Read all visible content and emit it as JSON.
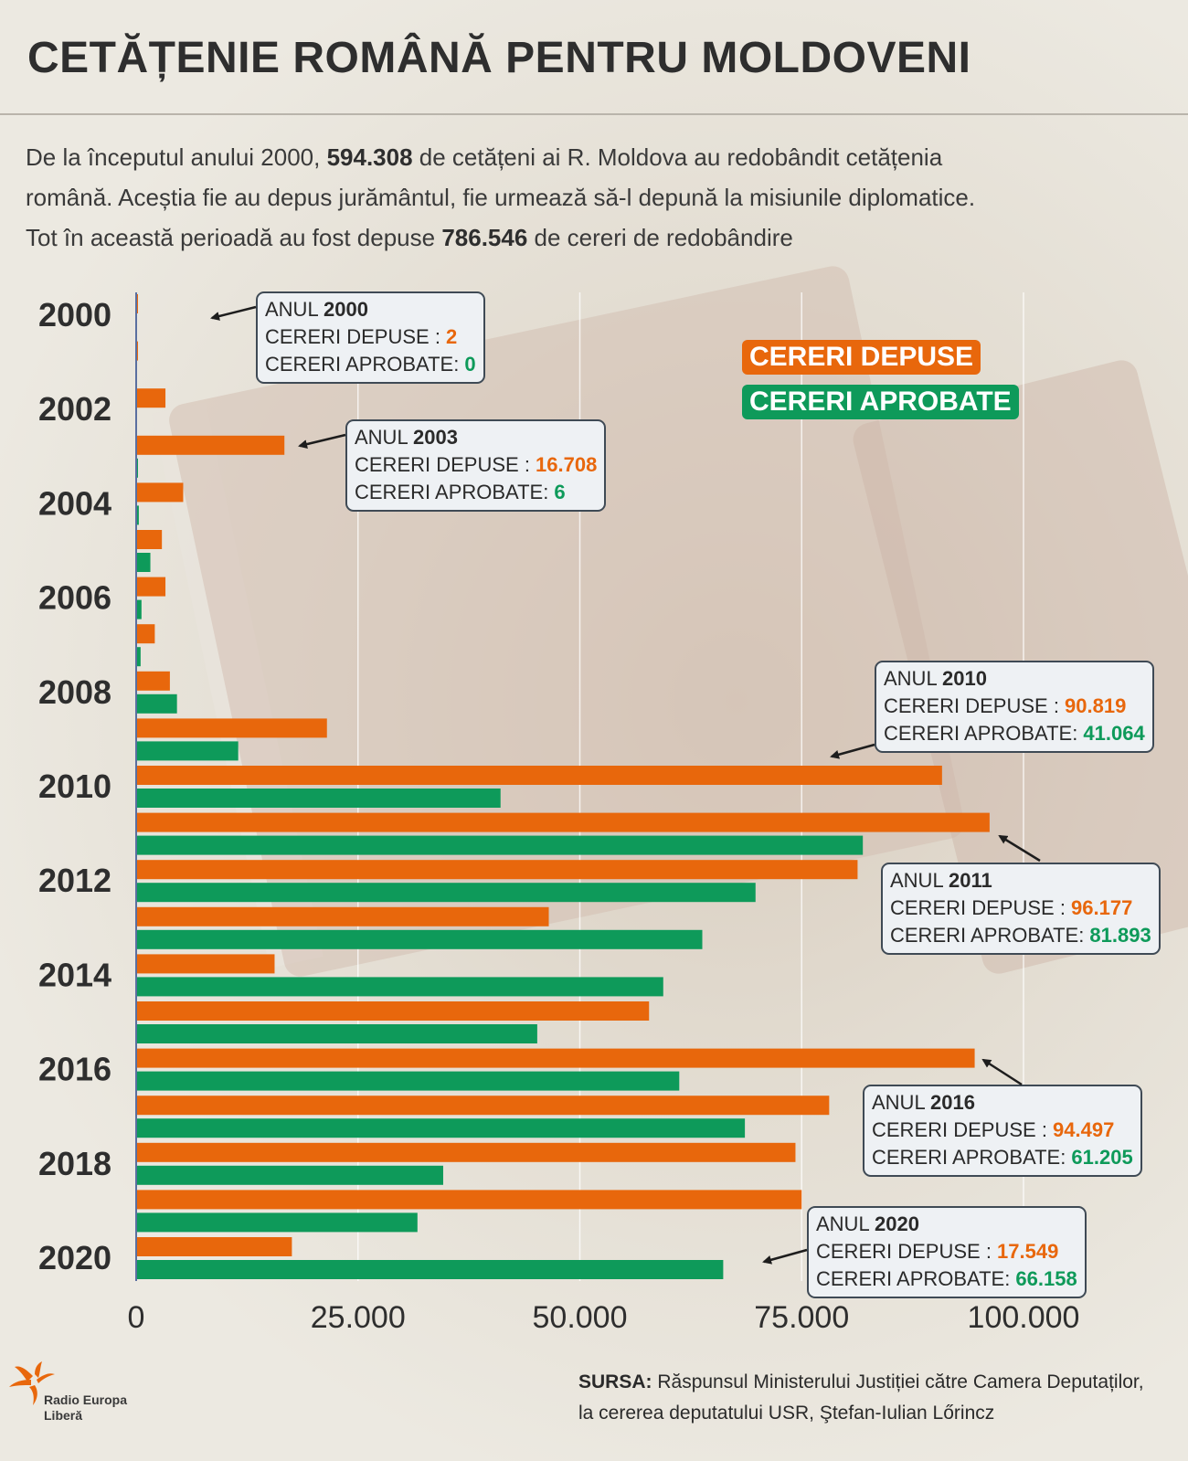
{
  "title": "CETĂȚENIE ROMÂNĂ PENTRU MOLDOVENI",
  "intro": {
    "line1_a": "De la începutul anului 2000, ",
    "line1_num": "594.308",
    "line1_b": " de cetățeni ai R. Moldova au redobândit cetățenia",
    "line2": "română. Aceștia fie au depus jurământul, fie urmează să-l depună la misiunile diplomatice.",
    "line3_a": "Tot în această perioadă au fost depuse ",
    "line3_num": "786.546",
    "line3_b": " de cereri de redobândire"
  },
  "legend": {
    "depuse": "CERERI DEPUSE",
    "aprobate": "CERERI APROBATE"
  },
  "colors": {
    "depuse": "#e8670c",
    "aprobate": "#0e9a5a",
    "axis": "#5a6fa0"
  },
  "callouts": [
    {
      "anul_label": "ANUL ",
      "year": "2000",
      "depuse_label": "CERERI DEPUSE : ",
      "depuse": "2",
      "aprobate_label": "CERERI APROBATE: ",
      "aprobate": "0"
    },
    {
      "anul_label": "ANUL ",
      "year": "2003",
      "depuse_label": "CERERI DEPUSE : ",
      "depuse": "16.708",
      "aprobate_label": "CERERI APROBATE: ",
      "aprobate": "6"
    },
    {
      "anul_label": "ANUL ",
      "year": "2010",
      "depuse_label": "CERERI DEPUSE : ",
      "depuse": "90.819",
      "aprobate_label": "CERERI APROBATE: ",
      "aprobate": "41.064"
    },
    {
      "anul_label": "ANUL ",
      "year": "2011",
      "depuse_label": "CERERI DEPUSE : ",
      "depuse": "96.177",
      "aprobate_label": "CERERI APROBATE: ",
      "aprobate": "81.893"
    },
    {
      "anul_label": "ANUL ",
      "year": "2016",
      "depuse_label": "CERERI DEPUSE : ",
      "depuse": "94.497",
      "aprobate_label": "CERERI APROBATE: ",
      "aprobate": "61.205"
    },
    {
      "anul_label": "ANUL ",
      "year": "2020",
      "depuse_label": "CERERI DEPUSE : ",
      "depuse": "17.549",
      "aprobate_label": "CERERI APROBATE: ",
      "aprobate": "66.158"
    }
  ],
  "source": {
    "label": "SURSA:",
    "line1": " Răspunsul Ministerului Justiției către Camera Deputaților,",
    "line2": "la cererea deputatului USR, Ştefan-Iulian Lőrincz"
  },
  "logo": {
    "line1": "Radio Europa",
    "line2": "Liberă"
  },
  "chart_data": {
    "type": "bar",
    "orientation": "horizontal",
    "categories": [
      "2000",
      "2001",
      "2002",
      "2003",
      "2004",
      "2005",
      "2006",
      "2007",
      "2008",
      "2009",
      "2010",
      "2011",
      "2012",
      "2013",
      "2014",
      "2015",
      "2016",
      "2017",
      "2018",
      "2019",
      "2020"
    ],
    "category_tick_labels": [
      "2000",
      "2002",
      "2004",
      "2006",
      "2008",
      "2010",
      "2012",
      "2014",
      "2016",
      "2018",
      "2020"
    ],
    "series": [
      {
        "name": "CERERI DEPUSE",
        "values": [
          2,
          200,
          3300,
          16708,
          5300,
          2900,
          3300,
          2100,
          3800,
          21500,
          90819,
          96177,
          81300,
          46500,
          15600,
          57800,
          94497,
          78100,
          74300,
          75000,
          17549
        ]
      },
      {
        "name": "CERERI APROBATE",
        "values": [
          0,
          0,
          0,
          6,
          300,
          1600,
          600,
          500,
          4600,
          11500,
          41064,
          81893,
          69800,
          63800,
          59400,
          45200,
          61205,
          68600,
          34600,
          31700,
          66158
        ]
      }
    ],
    "xlim": [
      0,
      105000
    ],
    "x_ticks": [
      0,
      25000,
      50000,
      75000,
      100000
    ],
    "x_tick_labels": [
      "0",
      "25.000",
      "50.000",
      "75.000",
      "100.000"
    ],
    "grid": true,
    "legend_position": "top-right"
  }
}
